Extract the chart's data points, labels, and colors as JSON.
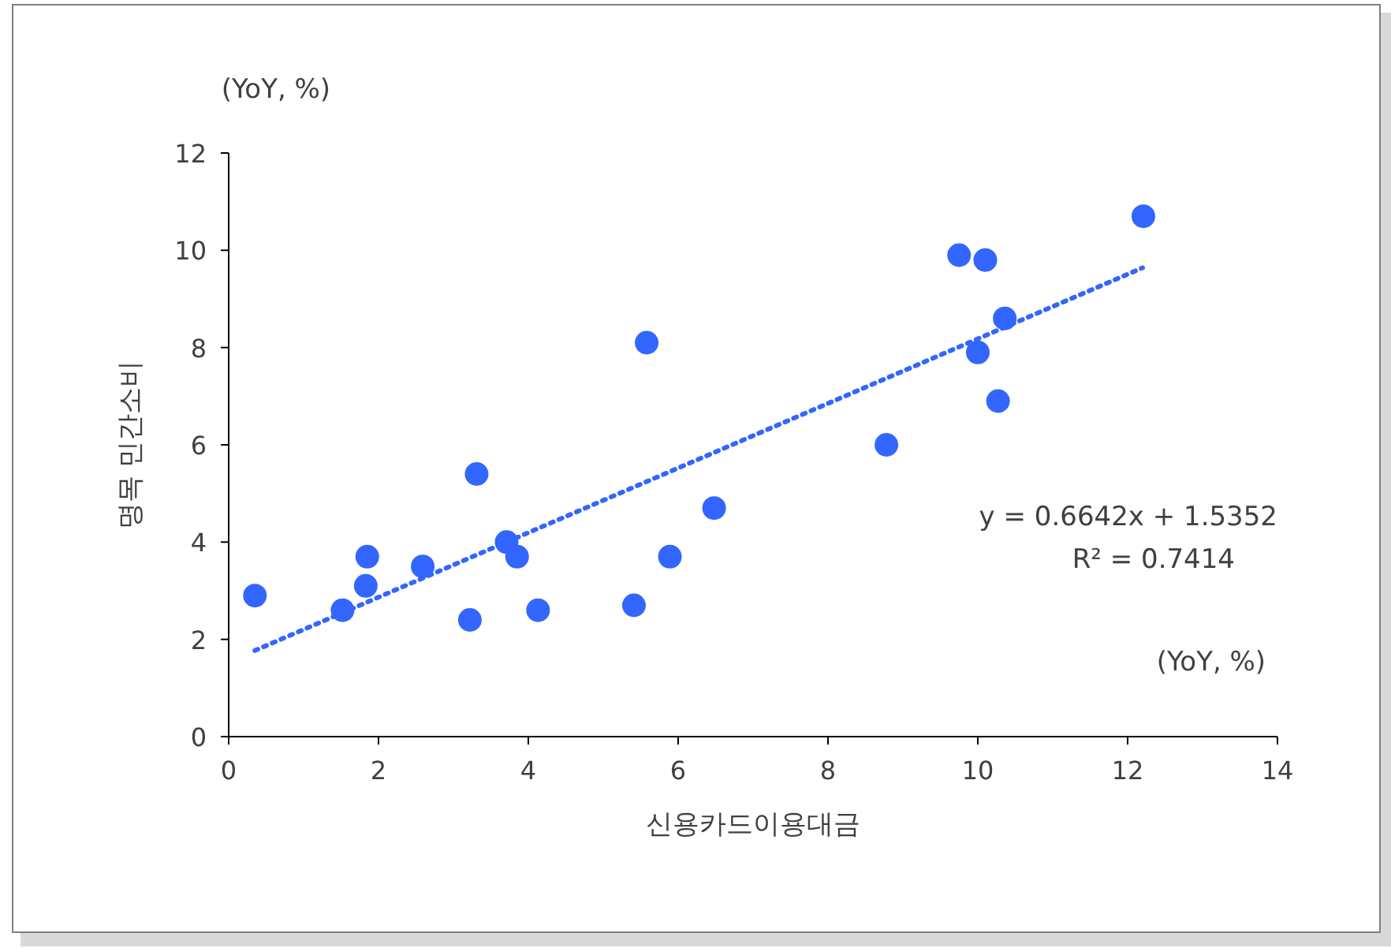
{
  "chart_data": {
    "type": "scatter",
    "xlabel": "신용카드이용대금",
    "ylabel": "명목 민간소비",
    "annotations": [
      "(YoY, %)",
      "(YoY, %)",
      "y = 0.6642x + 1.5352",
      "R² = 0.7414"
    ],
    "xlim": [
      0,
      14
    ],
    "ylim": [
      0,
      12
    ],
    "xticks": [
      0,
      2,
      4,
      6,
      8,
      10,
      12,
      14
    ],
    "yticks": [
      0,
      2,
      4,
      6,
      8,
      10,
      12
    ],
    "grid": false,
    "series": [
      {
        "type": "scatter",
        "color": "#3366ff",
        "marker": "circle",
        "x": [
          0.35,
          1.52,
          1.83,
          1.85,
          2.59,
          3.22,
          3.31,
          3.71,
          3.85,
          4.13,
          5.41,
          5.58,
          5.89,
          6.48,
          8.78,
          9.75,
          10.0,
          10.1,
          10.27,
          10.36,
          12.21
        ],
        "values": [
          2.9,
          2.6,
          3.1,
          3.7,
          3.5,
          2.4,
          5.4,
          4.0,
          3.7,
          2.6,
          2.7,
          8.1,
          3.7,
          4.7,
          6.0,
          9.9,
          7.9,
          9.8,
          6.9,
          8.6,
          10.7
        ]
      },
      {
        "type": "line",
        "color": "#3366ff",
        "line_style": "dotted",
        "x": [
          0.35,
          12.2
        ],
        "values": [
          1.77,
          9.64
        ]
      }
    ]
  }
}
